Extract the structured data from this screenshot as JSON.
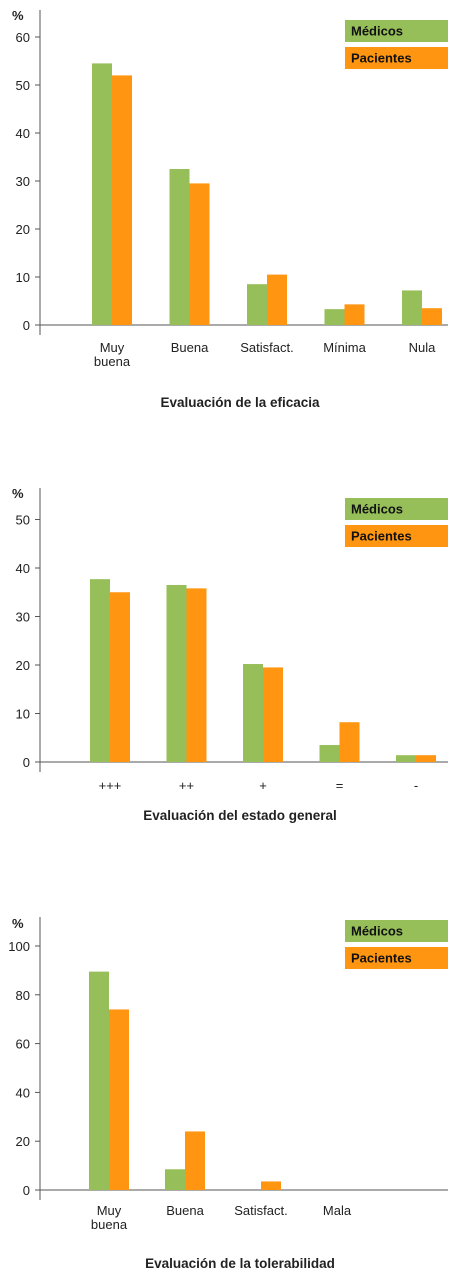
{
  "colors": {
    "medicos": "#96bf5a",
    "pacientes": "#ff9510",
    "axis": "#555555",
    "text": "#222222",
    "legend_text": "#111111"
  },
  "legend": {
    "medicos": "Médicos",
    "pacientes": "Pacientes"
  },
  "chart_data": [
    {
      "type": "bar",
      "title": "Evaluación de la eficacia",
      "ylabel": "%",
      "categories": [
        [
          "Muy",
          "buena"
        ],
        [
          "Buena"
        ],
        [
          "Satisfact."
        ],
        [
          "Mínima"
        ],
        [
          "Nula"
        ]
      ],
      "series": [
        {
          "name": "Médicos",
          "values": [
            54.5,
            32.5,
            8.5,
            3.3,
            7.2
          ]
        },
        {
          "name": "Pacientes",
          "values": [
            52,
            29.5,
            10.5,
            4.3,
            3.5
          ]
        }
      ],
      "ylim": [
        0,
        60
      ],
      "yticks": [
        0,
        10,
        20,
        30,
        40,
        50,
        60
      ],
      "legend": "top-right",
      "grid": false
    },
    {
      "type": "bar",
      "title": "Evaluación del estado general",
      "ylabel": "%",
      "categories": [
        [
          "+++"
        ],
        [
          "++"
        ],
        [
          "+"
        ],
        [
          "="
        ],
        [
          "-"
        ]
      ],
      "series": [
        {
          "name": "Médicos",
          "values": [
            37.7,
            36.5,
            20.2,
            3.5,
            1.4
          ]
        },
        {
          "name": "Pacientes",
          "values": [
            35,
            35.8,
            19.5,
            8.2,
            1.4
          ]
        }
      ],
      "ylim": [
        0,
        50
      ],
      "yticks": [
        0,
        10,
        20,
        30,
        40,
        50
      ],
      "legend": "top-right",
      "grid": false
    },
    {
      "type": "bar",
      "title": "Evaluación de la tolerabilidad",
      "ylabel": "%",
      "categories": [
        [
          "Muy",
          "buena"
        ],
        [
          "Buena"
        ],
        [
          "Satisfact."
        ],
        [
          "Mala"
        ]
      ],
      "series": [
        {
          "name": "Médicos",
          "values": [
            89.5,
            8.5,
            0,
            0
          ]
        },
        {
          "name": "Pacientes",
          "values": [
            74,
            24,
            3.5,
            0
          ]
        }
      ],
      "ylim": [
        0,
        100
      ],
      "yticks": [
        0,
        20,
        40,
        60,
        80,
        100
      ],
      "legend": "top-right",
      "grid": false
    }
  ]
}
